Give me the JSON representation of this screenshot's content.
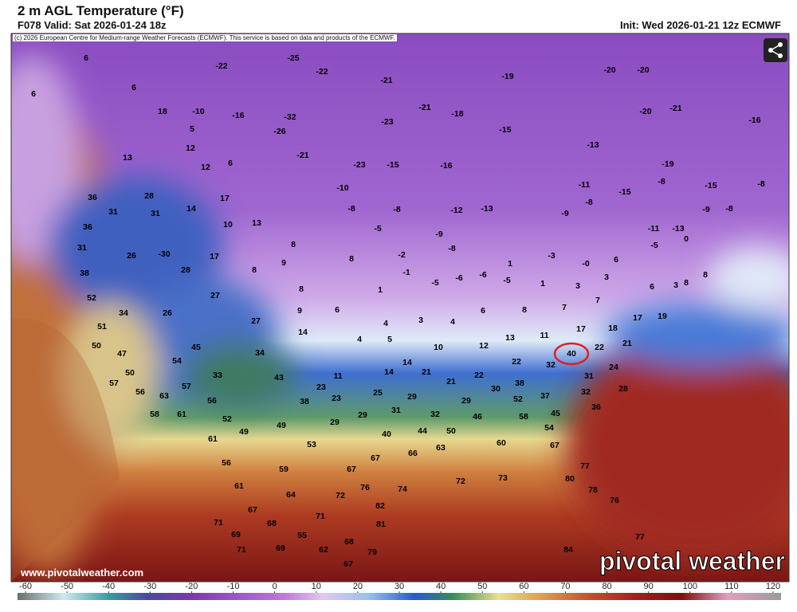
{
  "header": {
    "title": "2 m AGL Temperature (°F)",
    "valid": "F078 Valid: Sat 2026-01-24 18z",
    "init": "Init: Wed 2026-01-21 12z ECMWF",
    "copyright": "(c) 2026 European Centre for Medium-range Weather Forecasts (ECMWF). This service is based on data and products of the ECMWF."
  },
  "map": {
    "labels": [
      "6",
      "6",
      "6",
      "18",
      "-10",
      "5",
      "-16",
      "-32",
      "-26",
      "-22",
      "-25",
      "-22",
      "-21",
      "-21",
      "-18",
      "-23",
      "-15",
      "-19",
      "-20",
      "-20",
      "-20",
      "-21",
      "-16",
      "12",
      "12",
      "6",
      "-21",
      "-23",
      "-15",
      "-16",
      "-13",
      "-19",
      "13",
      "28",
      "36",
      "31",
      "31",
      "14",
      "17",
      "10",
      "13",
      "-10",
      "-8",
      "-8",
      "-5",
      "-12",
      "-13",
      "-11",
      "-9",
      "-8",
      "-15",
      "-8",
      "-15",
      "-8",
      "-8",
      "-9",
      "-11",
      "-13",
      "36",
      "31",
      "26",
      "-30",
      "17",
      "8",
      "9",
      "8",
      "8",
      "-2",
      "-9",
      "-8",
      "1",
      "-3",
      "-0",
      "6",
      "-5",
      "0",
      "38",
      "28",
      "52",
      "27",
      "8",
      "9",
      "1",
      "-1",
      "-5",
      "-6",
      "-6",
      "-5",
      "1",
      "3",
      "3",
      "6",
      "3",
      "8",
      "8",
      "51",
      "34",
      "26",
      "27",
      "6",
      "14",
      "4",
      "3",
      "4",
      "6",
      "8",
      "7",
      "7",
      "17",
      "19",
      "50",
      "47",
      "45",
      "34",
      "4",
      "5",
      "10",
      "12",
      "13",
      "11",
      "17",
      "18",
      "21",
      "22",
      "40",
      "54",
      "50",
      "33",
      "43",
      "11",
      "14",
      "14",
      "21",
      "22",
      "22",
      "32",
      "31",
      "24",
      "57",
      "56",
      "57",
      "63",
      "56",
      "23",
      "25",
      "29",
      "21",
      "30",
      "38",
      "37",
      "32",
      "28",
      "58",
      "61",
      "52",
      "38",
      "23",
      "29",
      "31",
      "32",
      "29",
      "52",
      "45",
      "36",
      "29",
      "49",
      "49",
      "53",
      "61",
      "46",
      "58",
      "54",
      "40",
      "44",
      "50",
      "60",
      "67",
      "56",
      "59",
      "67",
      "67",
      "66",
      "63",
      "74",
      "72",
      "73",
      "77",
      "80",
      "78",
      "61",
      "64",
      "72",
      "76",
      "82",
      "67",
      "71",
      "81",
      "76",
      "71",
      "68",
      "55",
      "68",
      "77",
      "69",
      "71",
      "69",
      "62",
      "79",
      "84",
      "67"
    ],
    "source": "www.pivotalweather.com",
    "watermark": "pivotal weather"
  },
  "colorbar": {
    "ticks": [
      -60,
      -50,
      -40,
      -30,
      -20,
      -10,
      0,
      10,
      20,
      30,
      40,
      50,
      60,
      70,
      80,
      90,
      100,
      110,
      120
    ]
  }
}
